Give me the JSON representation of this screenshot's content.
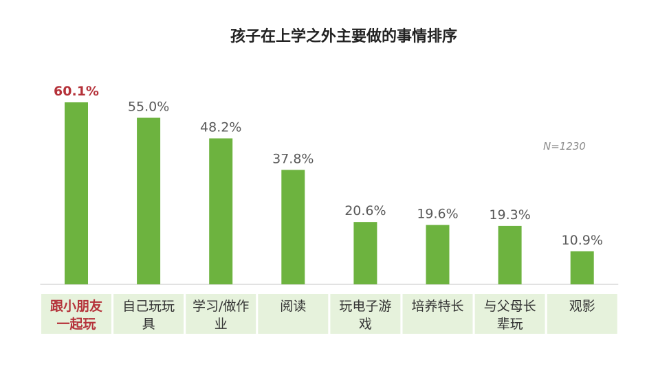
{
  "chart_data": {
    "type": "bar",
    "title": "孩子在上学之外主要做的事情排序",
    "categories": [
      [
        "跟小朋友",
        "一起玩"
      ],
      [
        "自己玩玩",
        "具"
      ],
      [
        "学习/做作",
        "业"
      ],
      [
        "阅读"
      ],
      [
        "玩电子游",
        "戏"
      ],
      [
        "培养特长"
      ],
      [
        "与父母长",
        "辈玩"
      ],
      [
        "观影"
      ]
    ],
    "values": [
      60.1,
      55.0,
      48.2,
      37.8,
      20.6,
      19.6,
      19.3,
      10.9
    ],
    "value_labels": [
      "60.1%",
      "55.0%",
      "48.2%",
      "37.8%",
      "20.6%",
      "19.6%",
      "19.3%",
      "10.9%"
    ],
    "highlight_index": 0,
    "note": "N=1230",
    "ylim": [
      0,
      65
    ],
    "grid": false,
    "legend": "none",
    "colors": {
      "bar": "#6db33f",
      "category_band": "#e6f2dc",
      "highlight_text": "#b5323a",
      "value_text": "#595959",
      "axis": "#d9d9d9"
    }
  }
}
